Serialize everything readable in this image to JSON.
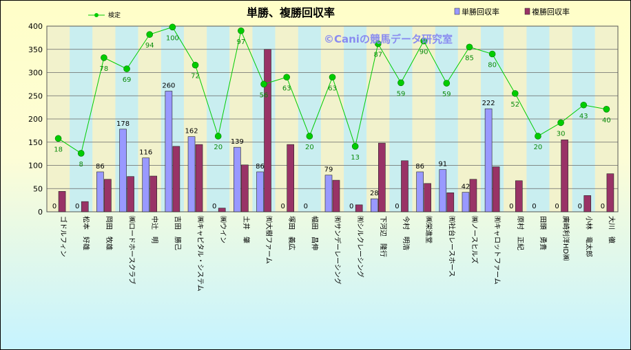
{
  "chart_data": {
    "type": "bar",
    "title": "単勝、複勝回収率",
    "watermark": "©Caniの競馬データ研究室",
    "ylim": [
      0,
      400
    ],
    "yticks": [
      0,
      50,
      100,
      150,
      200,
      250,
      300,
      350,
      400
    ],
    "legend_position": "top",
    "categories": [
      "ゴドルフィン",
      "松本　好雄",
      "岡田　牧雄",
      "㈱ロードホースクラブ",
      "中辻　明",
      "吉田　勝己",
      "㈱キャピタル・システム",
      "㈱ウイン",
      "土井　肇",
      "㈲大樹ファーム",
      "塚田　義広",
      "幅田　昌伸",
      "㈲サンデーレーシング",
      "㈲シルクレーシング",
      "下河辺　隆行",
      "今村　明浩",
      "㈱栄進堂",
      "㈲社台レースホース",
      "㈱ノースヒルズ",
      "㈲キャロットファーム",
      "原村　正紀",
      "田頭　勇貴",
      "廣崎利洋HD㈱",
      "小林　竜太郎",
      "大川　徹"
    ],
    "series": [
      {
        "name": "単勝回収率",
        "type": "bar",
        "color": "#9999ff",
        "values": [
          0,
          0,
          86,
          178,
          116,
          260,
          162,
          0,
          139,
          86,
          0,
          0,
          79,
          0,
          28,
          0,
          86,
          91,
          42,
          222,
          0,
          0,
          0,
          0,
          0
        ]
      },
      {
        "name": "複勝回収率",
        "type": "bar",
        "color": "#993366",
        "values": [
          44,
          22,
          70,
          76,
          77,
          141,
          145,
          8,
          101,
          350,
          145,
          0,
          68,
          15,
          148,
          110,
          61,
          41,
          70,
          97,
          67,
          0,
          155,
          35,
          82
        ]
      },
      {
        "name": "検定",
        "type": "line",
        "color": "#00cc00",
        "values": [
          158,
          126,
          332,
          308,
          382,
          398,
          316,
          163,
          390,
          275,
          290,
          163,
          290,
          141,
          362,
          278,
          368,
          277,
          355,
          340,
          255,
          163,
          192,
          230,
          221
        ],
        "labels": [
          18,
          8,
          78,
          69,
          94,
          100,
          72,
          20,
          97,
          56,
          63,
          20,
          63,
          13,
          87,
          59,
          90,
          59,
          85,
          80,
          52,
          20,
          30,
          43,
          40
        ]
      }
    ]
  }
}
